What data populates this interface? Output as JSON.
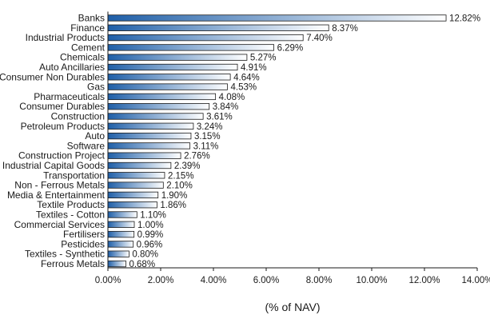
{
  "chart_data": {
    "type": "bar",
    "orientation": "horizontal",
    "categories": [
      "Banks",
      "Finance",
      "Industrial Products",
      "Cement",
      "Chemicals",
      "Auto Ancillaries",
      "Consumer Non Durables",
      "Gas",
      "Pharmaceuticals",
      "Consumer Durables",
      "Construction",
      "Petroleum Products",
      "Auto",
      "Software",
      "Construction Project",
      "Industrial Capital Goods",
      "Transportation",
      "Non - Ferrous Metals",
      "Media & Entertainment",
      "Textile Products",
      "Textiles - Cotton",
      "Commercial Services",
      "Fertilisers",
      "Pesticides",
      "Textiles - Synthetic",
      "Ferrous Metals"
    ],
    "values": [
      12.82,
      8.37,
      7.4,
      6.29,
      5.27,
      4.91,
      4.64,
      4.53,
      4.08,
      3.84,
      3.61,
      3.24,
      3.15,
      3.11,
      2.76,
      2.39,
      2.15,
      2.1,
      1.9,
      1.86,
      1.1,
      1.0,
      0.99,
      0.96,
      0.8,
      0.68
    ],
    "value_labels": [
      "12.82%",
      "8.37%",
      "7.40%",
      "6.29%",
      "5.27%",
      "4.91%",
      "4.64%",
      "4.53%",
      "4.08%",
      "3.84%",
      "3.61%",
      "3.24%",
      "3.15%",
      "3.11%",
      "2.76%",
      "2.39%",
      "2.15%",
      "2.10%",
      "1.90%",
      "1.86%",
      "1.10%",
      "1.00%",
      "0.99%",
      "0.96%",
      "0.80%",
      "0.68%"
    ],
    "xticks": [
      0,
      2,
      4,
      6,
      8,
      10,
      12,
      14
    ],
    "xtick_labels": [
      "0.00%",
      "2.00%",
      "4.00%",
      "6.00%",
      "8.00%",
      "10.00%",
      "12.00%",
      "14.00%"
    ],
    "xlim": [
      0,
      14
    ],
    "xlabel": "(% of NAV)",
    "ylabel": "",
    "title": "",
    "grid": false,
    "colors": {
      "bar_dark": "#1f5fa8",
      "bar_light": "#ffffff",
      "bar_edge": "#1a1a1a",
      "axis": "#1a1a1a"
    }
  }
}
